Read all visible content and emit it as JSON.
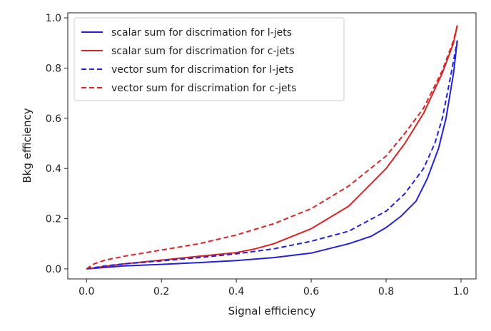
{
  "chart_data": {
    "type": "line",
    "title": "",
    "xlabel": "Signal efficiency",
    "ylabel": "Bkg efficiency",
    "xlim": [
      -0.05,
      1.04
    ],
    "ylim": [
      -0.04,
      1.02
    ],
    "xticks": [
      "0.0",
      "0.2",
      "0.4",
      "0.6",
      "0.8",
      "1.0"
    ],
    "xtick_values": [
      0.0,
      0.2,
      0.4,
      0.6,
      0.8,
      1.0
    ],
    "yticks": [
      "0.0",
      "0.2",
      "0.4",
      "0.6",
      "0.8",
      "1.0"
    ],
    "ytick_values": [
      0.0,
      0.2,
      0.4,
      0.6,
      0.8,
      1.0
    ],
    "grid": false,
    "legend_position": "top-left",
    "series": [
      {
        "name": "scalar sum for discrimation for l-jets",
        "color": "#2222dd",
        "style": "solid",
        "x": [
          0.0,
          0.1,
          0.2,
          0.3,
          0.4,
          0.5,
          0.6,
          0.7,
          0.76,
          0.8,
          0.84,
          0.88,
          0.91,
          0.94,
          0.96,
          0.98,
          0.99
        ],
        "y": [
          0.0,
          0.012,
          0.018,
          0.025,
          0.033,
          0.045,
          0.063,
          0.1,
          0.13,
          0.165,
          0.21,
          0.27,
          0.36,
          0.48,
          0.6,
          0.78,
          0.91
        ]
      },
      {
        "name": "scalar sum for discrimation for c-jets",
        "color": "#dd2222",
        "style": "solid",
        "x": [
          0.0,
          0.05,
          0.1,
          0.2,
          0.3,
          0.4,
          0.45,
          0.5,
          0.6,
          0.7,
          0.8,
          0.85,
          0.9,
          0.95,
          0.98,
          0.99
        ],
        "y": [
          0.0,
          0.01,
          0.02,
          0.035,
          0.05,
          0.065,
          0.08,
          0.1,
          0.16,
          0.25,
          0.4,
          0.5,
          0.62,
          0.78,
          0.9,
          0.97
        ]
      },
      {
        "name": "vector sum for discrimation for l-jets",
        "color": "#2222dd",
        "style": "dashed",
        "x": [
          0.0,
          0.05,
          0.1,
          0.2,
          0.3,
          0.4,
          0.5,
          0.6,
          0.7,
          0.8,
          0.85,
          0.9,
          0.93,
          0.95,
          0.97,
          0.99
        ],
        "y": [
          0.0,
          0.012,
          0.02,
          0.032,
          0.045,
          0.06,
          0.08,
          0.11,
          0.15,
          0.23,
          0.3,
          0.4,
          0.5,
          0.6,
          0.75,
          0.91
        ]
      },
      {
        "name": "vector sum for discrimation for c-jets",
        "color": "#dd2222",
        "style": "dashed",
        "x": [
          0.0,
          0.02,
          0.05,
          0.1,
          0.2,
          0.3,
          0.4,
          0.5,
          0.6,
          0.7,
          0.8,
          0.85,
          0.9,
          0.95,
          0.98,
          0.99
        ],
        "y": [
          0.0,
          0.02,
          0.035,
          0.05,
          0.075,
          0.1,
          0.135,
          0.18,
          0.24,
          0.33,
          0.45,
          0.54,
          0.64,
          0.79,
          0.91,
          0.97
        ]
      }
    ]
  }
}
